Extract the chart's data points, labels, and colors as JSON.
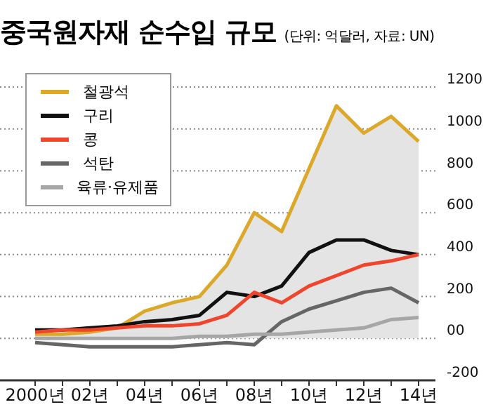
{
  "chart_data": {
    "type": "line",
    "title": "중국원자재 순수입 규모",
    "subtitle": "(단위: 억달러, 자료: UN)",
    "categories": [
      "2000년",
      null,
      "02년",
      null,
      "04년",
      null,
      "06년",
      null,
      "08년",
      null,
      "10년",
      null,
      "12년",
      null,
      "14년"
    ],
    "series": [
      {
        "name": "철광석",
        "type": "area",
        "color": "#dca829",
        "values": [
          20,
          20,
          30,
          50,
          130,
          170,
          200,
          350,
          600,
          510,
          810,
          1110,
          980,
          1060,
          940
        ]
      },
      {
        "name": "구리",
        "color": "#111111",
        "values": [
          40,
          40,
          50,
          60,
          80,
          90,
          110,
          220,
          200,
          250,
          410,
          470,
          470,
          420,
          400
        ]
      },
      {
        "name": "콩",
        "color": "#f0452d",
        "values": [
          30,
          40,
          40,
          50,
          60,
          60,
          70,
          110,
          220,
          170,
          250,
          300,
          350,
          370,
          400
        ]
      },
      {
        "name": "석탄",
        "color": "#666666",
        "values": [
          -20,
          -30,
          -40,
          -40,
          -40,
          -40,
          -30,
          -20,
          -30,
          80,
          140,
          180,
          220,
          240,
          170
        ]
      },
      {
        "name": "육류·유제품",
        "color": "#a6a6a6",
        "values": [
          0,
          0,
          0,
          0,
          0,
          0,
          10,
          10,
          20,
          20,
          30,
          40,
          50,
          90,
          100
        ]
      }
    ],
    "ylim": [
      -200,
      1200
    ],
    "yticks": [
      {
        "value": -200,
        "label": "-200"
      },
      {
        "value": 0,
        "label": "00"
      },
      200,
      400,
      600,
      800,
      1000,
      1200
    ],
    "grid": "y",
    "legend": "top left",
    "marker": "none",
    "line_style": "solid"
  }
}
